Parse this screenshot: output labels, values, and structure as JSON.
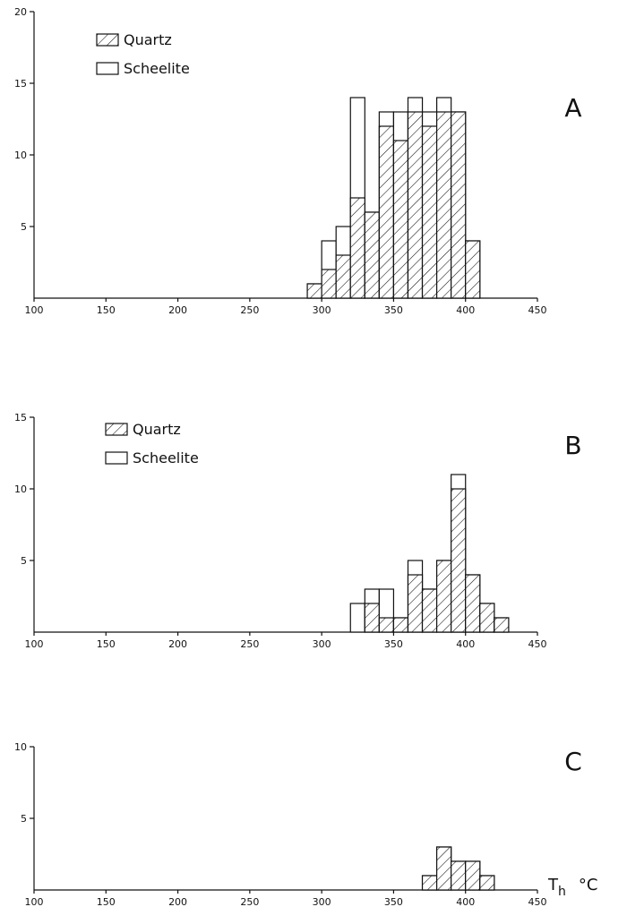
{
  "chart_data": [
    {
      "type": "bar",
      "panel": "A",
      "xlim": [
        100,
        450
      ],
      "ylim": [
        0,
        20
      ],
      "x_ticks": [
        100,
        150,
        200,
        250,
        300,
        350,
        400,
        450
      ],
      "y_ticks": [
        5,
        10,
        15,
        20
      ],
      "bin_width": 10,
      "series": [
        {
          "name": "Quartz",
          "bins": [
            [
              290,
              1
            ],
            [
              300,
              2
            ],
            [
              310,
              3
            ],
            [
              320,
              7
            ],
            [
              330,
              6
            ],
            [
              340,
              12
            ],
            [
              350,
              11
            ],
            [
              360,
              13
            ],
            [
              370,
              12
            ],
            [
              380,
              13
            ],
            [
              390,
              13
            ],
            [
              400,
              4
            ]
          ]
        },
        {
          "name": "Scheelite",
          "bins": [
            [
              290,
              0
            ],
            [
              300,
              2
            ],
            [
              310,
              2
            ],
            [
              320,
              7
            ],
            [
              330,
              0
            ],
            [
              340,
              1
            ],
            [
              350,
              2
            ],
            [
              360,
              1
            ],
            [
              370,
              1
            ],
            [
              380,
              1
            ],
            [
              390,
              0
            ],
            [
              400,
              0
            ]
          ]
        }
      ],
      "legend": {
        "items": [
          "Quartz",
          "Scheelite"
        ],
        "placement": "top-left"
      }
    },
    {
      "type": "bar",
      "panel": "B",
      "xlim": [
        100,
        450
      ],
      "ylim": [
        0,
        15
      ],
      "x_ticks": [
        100,
        150,
        200,
        250,
        300,
        350,
        400,
        450
      ],
      "y_ticks": [
        5,
        10,
        15
      ],
      "bin_width": 10,
      "series": [
        {
          "name": "Quartz",
          "bins": [
            [
              320,
              0
            ],
            [
              330,
              2
            ],
            [
              340,
              1
            ],
            [
              350,
              1
            ],
            [
              360,
              4
            ],
            [
              370,
              3
            ],
            [
              380,
              5
            ],
            [
              390,
              10
            ],
            [
              400,
              4
            ],
            [
              410,
              2
            ],
            [
              420,
              1
            ]
          ]
        },
        {
          "name": "Scheelite",
          "bins": [
            [
              320,
              2
            ],
            [
              330,
              1
            ],
            [
              340,
              2
            ],
            [
              350,
              0
            ],
            [
              360,
              1
            ],
            [
              370,
              0
            ],
            [
              380,
              0
            ],
            [
              390,
              1
            ],
            [
              400,
              0
            ],
            [
              410,
              0
            ],
            [
              420,
              0
            ]
          ]
        }
      ],
      "legend": {
        "items": [
          "Quartz",
          "Scheelite"
        ],
        "placement": "top-left"
      }
    },
    {
      "type": "bar",
      "panel": "C",
      "xlim": [
        100,
        450
      ],
      "ylim": [
        0,
        10
      ],
      "x_ticks": [
        100,
        150,
        200,
        250,
        300,
        350,
        400,
        450
      ],
      "y_ticks": [
        5,
        10
      ],
      "bin_width": 10,
      "series": [
        {
          "name": "Quartz",
          "bins": [
            [
              370,
              1
            ],
            [
              380,
              3
            ],
            [
              390,
              2
            ],
            [
              400,
              2
            ],
            [
              410,
              1
            ]
          ]
        }
      ],
      "xlabel": {
        "main": "T",
        "sub": "h",
        "unit": "°C"
      }
    }
  ],
  "legend_labels": {
    "quartz": "Quartz",
    "scheelite": "Scheelite"
  },
  "panel_labels": [
    "A",
    "B",
    "C"
  ],
  "colors": {
    "ink": "#111111",
    "background": "#ffffff"
  }
}
